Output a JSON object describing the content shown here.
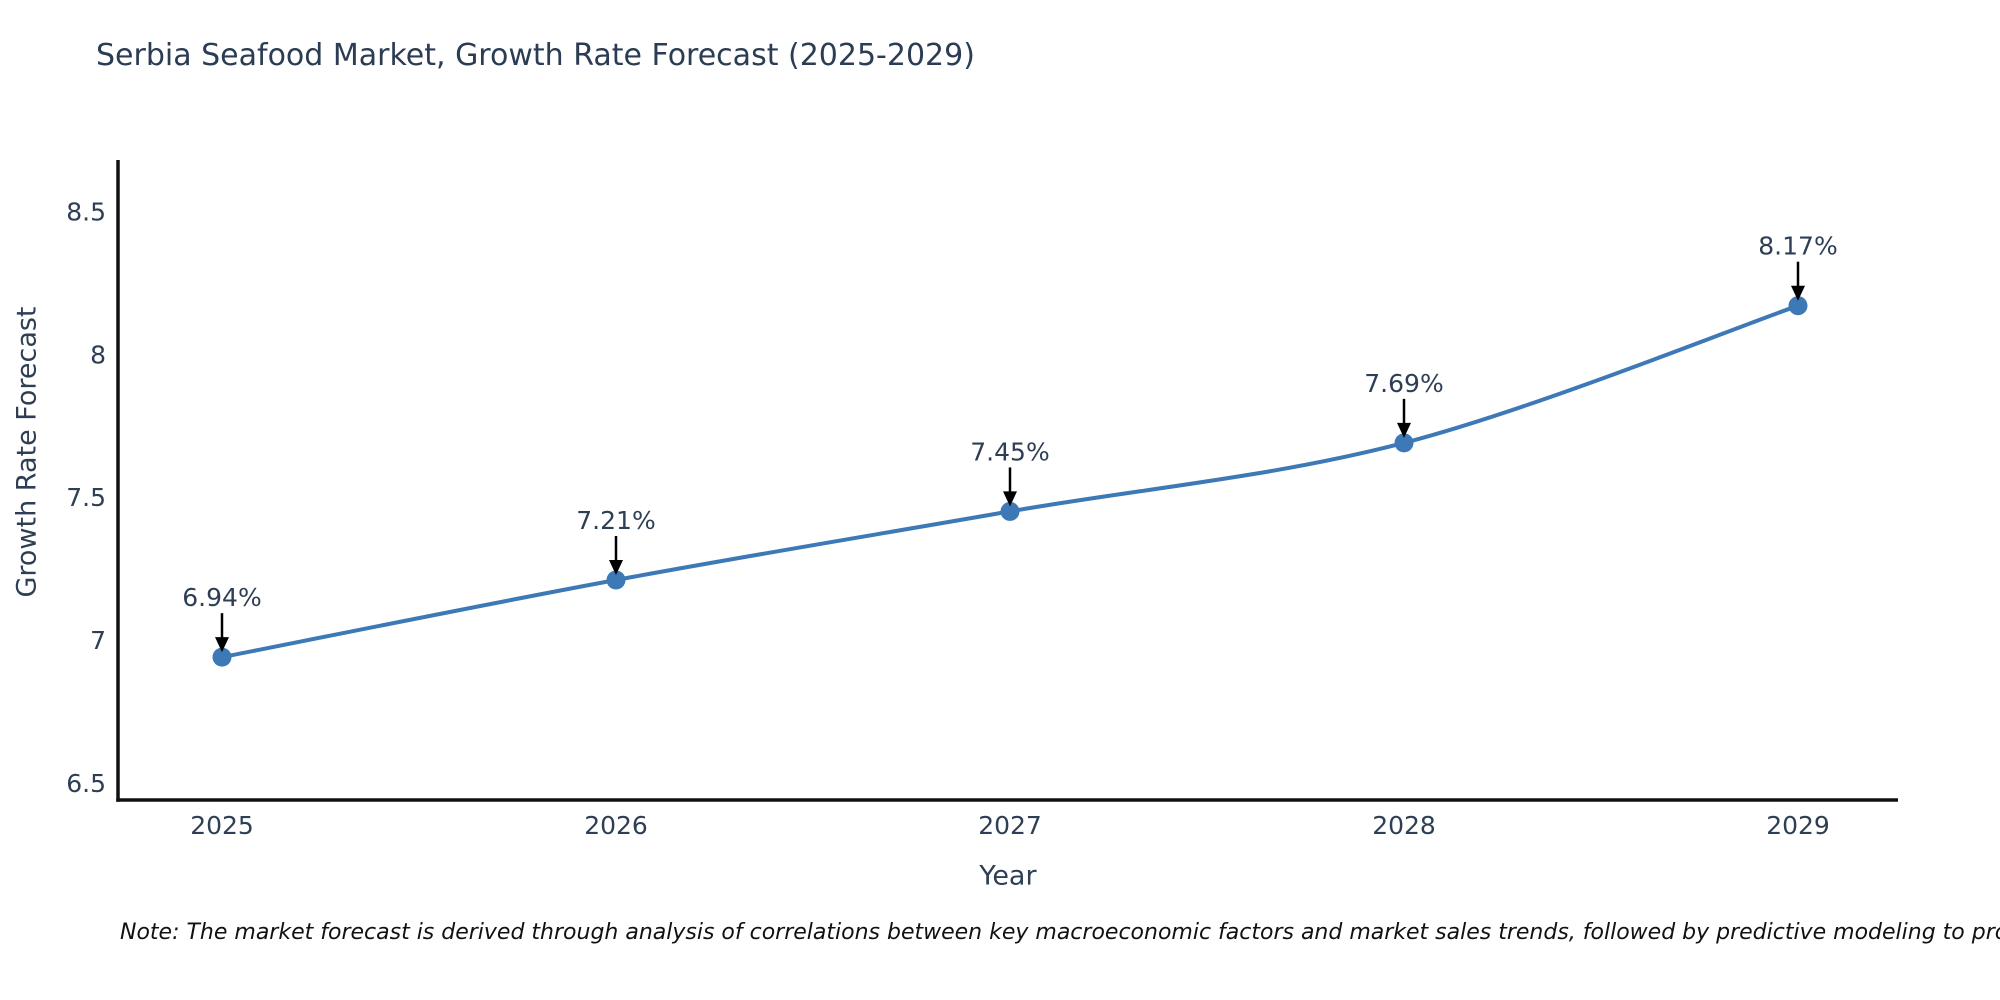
{
  "chart_data": {
    "type": "line",
    "title": "Serbia Seafood Market, Growth Rate Forecast (2025-2029)",
    "xlabel": "Year",
    "ylabel": "Growth Rate Forecast",
    "categories": [
      "2025",
      "2026",
      "2027",
      "2028",
      "2029"
    ],
    "series": [
      {
        "name": "Growth Rate Forecast",
        "values": [
          6.94,
          7.21,
          7.45,
          7.69,
          8.17
        ]
      }
    ],
    "point_labels": [
      "6.94%",
      "7.21%",
      "7.45%",
      "7.69%",
      "8.17%"
    ],
    "yticks": [
      6.5,
      7,
      7.5,
      8,
      8.5
    ],
    "ytick_labels": [
      "6.5",
      "7",
      "7.5",
      "8",
      "8.5"
    ],
    "ylim": [
      6.44,
      8.68
    ],
    "grid": false,
    "legend": false,
    "line_shape": "spline",
    "colors": {
      "line": "#3d79b6",
      "marker": "#3d79b6",
      "axis": "#111111",
      "text": "#2e3f55",
      "annotation_arrow": "#000000"
    },
    "note": "Note: The market forecast is derived through analysis of correlations between key macroeconomic factors and market sales trends, followed by predictive modeling to project future sales"
  }
}
